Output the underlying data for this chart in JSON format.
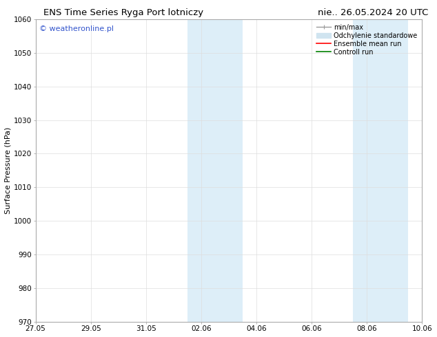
{
  "title_left": "ENS Time Series Ryga Port lotniczy",
  "title_right": "nie.. 26.05.2024 20 UTC",
  "ylabel": "Surface Pressure (hPa)",
  "ylim": [
    970,
    1060
  ],
  "yticks": [
    970,
    980,
    990,
    1000,
    1010,
    1020,
    1030,
    1040,
    1050,
    1060
  ],
  "xlim": [
    0,
    14
  ],
  "xtick_labels": [
    "27.05",
    "29.05",
    "31.05",
    "02.06",
    "04.06",
    "06.06",
    "08.06",
    "10.06"
  ],
  "xtick_positions": [
    0,
    2,
    4,
    6,
    8,
    10,
    12,
    14
  ],
  "shaded_bands": [
    {
      "start": 5.5,
      "end": 6.5,
      "color": "#ddeef8"
    },
    {
      "start": 6.5,
      "end": 7.5,
      "color": "#ddeef8"
    },
    {
      "start": 11.5,
      "end": 12.5,
      "color": "#ddeef8"
    },
    {
      "start": 12.5,
      "end": 13.5,
      "color": "#ddeef8"
    }
  ],
  "shaded_sep_color": "#ffffff",
  "watermark_text": "© weatheronline.pl",
  "watermark_color": "#3355cc",
  "legend_entries": [
    {
      "label": "min/max",
      "color": "#999999"
    },
    {
      "label": "Odchylenie standardowe",
      "color": "#d0e4f0"
    },
    {
      "label": "Ensemble mean run",
      "color": "red"
    },
    {
      "label": "Controll run",
      "color": "green"
    }
  ],
  "background_color": "#ffffff",
  "spine_color": "#aaaaaa",
  "title_fontsize": 9.5,
  "ylabel_fontsize": 8,
  "tick_fontsize": 7.5,
  "legend_fontsize": 7,
  "watermark_fontsize": 8
}
